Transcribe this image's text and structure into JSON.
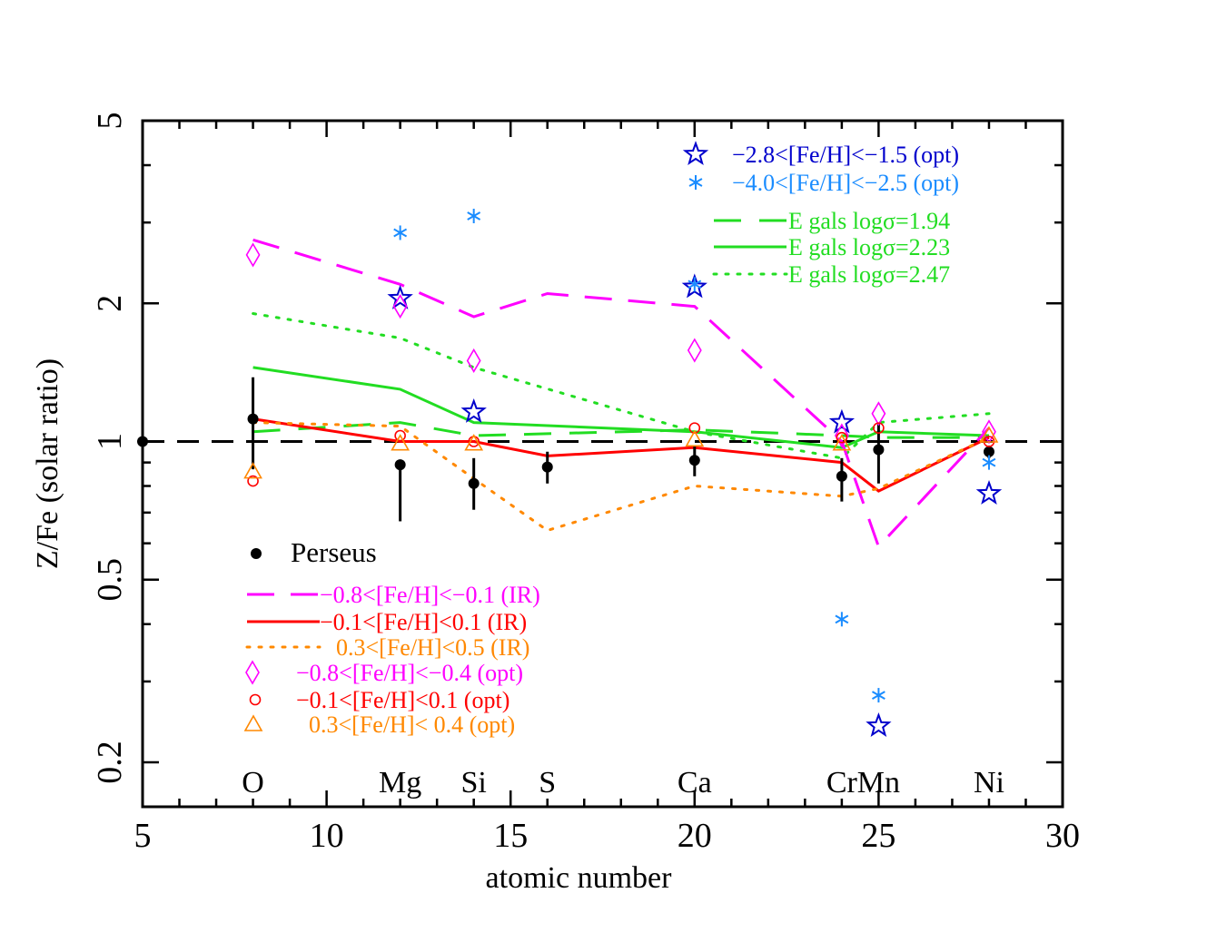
{
  "chart_data": {
    "type": "scatter",
    "xlabel": "atomic number",
    "ylabel": "Z/Fe (solar ratio)",
    "xlim": [
      5,
      30
    ],
    "ylim": [
      0.16,
      5
    ],
    "yscale": "log",
    "x_ticks": [
      5,
      10,
      15,
      20,
      25,
      30
    ],
    "x_tick_labels": [
      "5",
      "10",
      "15",
      "20",
      "25",
      "30"
    ],
    "y_ticks": [
      0.2,
      0.5,
      1,
      2,
      5
    ],
    "y_tick_labels": [
      "0.2",
      "0.5",
      "1",
      "2",
      "5"
    ],
    "reference_line": {
      "y": 1,
      "style": "dashed",
      "color": "#000000"
    },
    "element_labels": [
      {
        "x": 8,
        "label": "O"
      },
      {
        "x": 12,
        "label": "Mg"
      },
      {
        "x": 14,
        "label": "Si"
      },
      {
        "x": 16,
        "label": "S"
      },
      {
        "x": 20,
        "label": "Ca"
      },
      {
        "x": 24,
        "label": "Cr"
      },
      {
        "x": 25,
        "label": "Mn"
      },
      {
        "x": 28,
        "label": "Ni"
      }
    ],
    "series": [
      {
        "name": "Perseus",
        "kind": "errorbar",
        "color": "#000000",
        "points": [
          {
            "x": 8,
            "y": 1.12,
            "lo": 0.87,
            "hi": 1.38
          },
          {
            "x": 12,
            "y": 0.89,
            "lo": 0.67,
            "hi": 0.89
          },
          {
            "x": 14,
            "y": 0.81,
            "lo": 0.71,
            "hi": 0.92
          },
          {
            "x": 16,
            "y": 0.88,
            "lo": 0.81,
            "hi": 0.95
          },
          {
            "x": 20,
            "y": 0.91,
            "lo": 0.84,
            "hi": 0.98
          },
          {
            "x": 24,
            "y": 0.84,
            "lo": 0.74,
            "hi": 0.92
          },
          {
            "x": 25,
            "y": 0.96,
            "lo": 0.81,
            "hi": 1.1
          },
          {
            "x": 28,
            "y": 0.95,
            "lo": 0.92,
            "hi": 0.98
          },
          {
            "x": 5,
            "y": 1.0,
            "lo": 1.0,
            "hi": 1.0
          }
        ]
      },
      {
        "name": "−2.8<[Fe/H]<−1.5 (opt)",
        "kind": "star",
        "color": "#0000cc",
        "points": [
          [
            12,
            2.05
          ],
          [
            14,
            1.16
          ],
          [
            20,
            2.17
          ],
          [
            24,
            1.1
          ],
          [
            25,
            0.24
          ],
          [
            28,
            0.77
          ]
        ]
      },
      {
        "name": "−4.0<[Fe/H]<−2.5 (opt)",
        "kind": "asterisk",
        "color": "#1a8cff",
        "points": [
          [
            12,
            2.85
          ],
          [
            14,
            3.1
          ],
          [
            20,
            2.2
          ],
          [
            24,
            0.41
          ],
          [
            25,
            0.28
          ],
          [
            28,
            0.9
          ]
        ]
      },
      {
        "name": "E gals logσ=1.94",
        "kind": "line",
        "style": "longdash",
        "color": "#22dd22",
        "points": [
          [
            8,
            1.05
          ],
          [
            12,
            1.1
          ],
          [
            14,
            1.03
          ],
          [
            20,
            1.06
          ],
          [
            24,
            1.03
          ],
          [
            25,
            1.02
          ],
          [
            28,
            1.02
          ]
        ]
      },
      {
        "name": "E gals logσ=2.23",
        "kind": "line",
        "style": "solid",
        "color": "#22dd22",
        "points": [
          [
            8,
            1.45
          ],
          [
            12,
            1.3
          ],
          [
            14,
            1.1
          ],
          [
            20,
            1.05
          ],
          [
            24,
            0.97
          ],
          [
            25,
            1.05
          ],
          [
            28,
            1.03
          ]
        ]
      },
      {
        "name": "E gals logσ=2.47",
        "kind": "line",
        "style": "dotted",
        "color": "#22dd22",
        "points": [
          [
            8,
            1.9
          ],
          [
            12,
            1.68
          ],
          [
            14,
            1.45
          ],
          [
            20,
            1.05
          ],
          [
            24,
            0.92
          ],
          [
            25,
            1.1
          ],
          [
            28,
            1.15
          ]
        ]
      },
      {
        "name": "−0.8<[Fe/H]<−0.1 (IR)",
        "kind": "line",
        "style": "dashed",
        "color": "#ff00ff",
        "points": [
          [
            8,
            2.75
          ],
          [
            12,
            2.2
          ],
          [
            14,
            1.87
          ],
          [
            16,
            2.1
          ],
          [
            20,
            1.97
          ],
          [
            24,
            1.0
          ],
          [
            25,
            0.59
          ],
          [
            28,
            1.07
          ]
        ]
      },
      {
        "name": "−0.1<[Fe/H]<0.1 (IR)",
        "kind": "line",
        "style": "solid",
        "color": "#ff0000",
        "points": [
          [
            8,
            1.12
          ],
          [
            12,
            1.0
          ],
          [
            14,
            1.0
          ],
          [
            16,
            0.93
          ],
          [
            20,
            0.97
          ],
          [
            24,
            0.9
          ],
          [
            25,
            0.78
          ],
          [
            28,
            1.02
          ]
        ]
      },
      {
        "name": "0.3<[Fe/H]<0.5 (IR)",
        "kind": "line",
        "style": "dotted",
        "color": "#ff8800",
        "points": [
          [
            8,
            1.1
          ],
          [
            12,
            1.08
          ],
          [
            14,
            0.83
          ],
          [
            16,
            0.64
          ],
          [
            20,
            0.8
          ],
          [
            24,
            0.76
          ],
          [
            25,
            0.79
          ],
          [
            28,
            1.02
          ]
        ]
      },
      {
        "name": "−0.8<[Fe/H]<−0.4 (opt)",
        "kind": "diamond",
        "color": "#ff00ff",
        "points": [
          [
            8,
            2.55
          ],
          [
            12,
            1.97
          ],
          [
            14,
            1.5
          ],
          [
            20,
            1.58
          ],
          [
            24,
            1.03
          ],
          [
            25,
            1.15
          ],
          [
            28,
            1.05
          ]
        ]
      },
      {
        "name": "−0.1<[Fe/H]<0.1 (opt)",
        "kind": "circle",
        "color": "#ff0000",
        "points": [
          [
            8,
            0.82
          ],
          [
            12,
            1.03
          ],
          [
            14,
            1.0
          ],
          [
            20,
            1.07
          ],
          [
            24,
            1.02
          ],
          [
            25,
            1.07
          ],
          [
            28,
            1.0
          ]
        ]
      },
      {
        "name": "0.3<[Fe/H]< 0.4 (opt)",
        "kind": "triangle",
        "color": "#ff8800",
        "points": [
          [
            8,
            0.86
          ],
          [
            12,
            0.99
          ],
          [
            14,
            0.99
          ],
          [
            20,
            1.01
          ],
          [
            24,
            0.99
          ],
          [
            28,
            1.03
          ]
        ]
      }
    ],
    "legends": {
      "top_right": [
        {
          "series": 1,
          "symbol": "star",
          "color": "#0000cc",
          "label": "−2.8<[Fe/H]<−1.5 (opt)"
        },
        {
          "series": 2,
          "symbol": "asterisk",
          "color": "#1a8cff",
          "label": "−4.0<[Fe/H]<−2.5 (opt)"
        },
        {
          "series": 3,
          "symbol": "longdash",
          "color": "#22dd22",
          "label": "E gals logσ=1.94"
        },
        {
          "series": 4,
          "symbol": "solid",
          "color": "#22dd22",
          "label": "E gals logσ=2.23"
        },
        {
          "series": 5,
          "symbol": "dotted",
          "color": "#22dd22",
          "label": "E gals logσ=2.47"
        }
      ],
      "bottom_left": [
        {
          "series": 0,
          "symbol": "dot",
          "color": "#000000",
          "label": "Perseus"
        },
        {
          "series": 6,
          "symbol": "dashed",
          "color": "#ff00ff",
          "label": "−0.8<[Fe/H]<−0.1 (IR)"
        },
        {
          "series": 7,
          "symbol": "solid",
          "color": "#ff0000",
          "label": "−0.1<[Fe/H]<0.1 (IR)"
        },
        {
          "series": 8,
          "symbol": "dotted",
          "color": "#ff8800",
          "label": "0.3<[Fe/H]<0.5 (IR)"
        },
        {
          "series": 9,
          "symbol": "diamond",
          "color": "#ff00ff",
          "label": "−0.8<[Fe/H]<−0.4 (opt)"
        },
        {
          "series": 10,
          "symbol": "circle",
          "color": "#ff0000",
          "label": "−0.1<[Fe/H]<0.1 (opt)"
        },
        {
          "series": 11,
          "symbol": "triangle",
          "color": "#ff8800",
          "label": "0.3<[Fe/H]< 0.4 (opt)"
        }
      ]
    }
  }
}
